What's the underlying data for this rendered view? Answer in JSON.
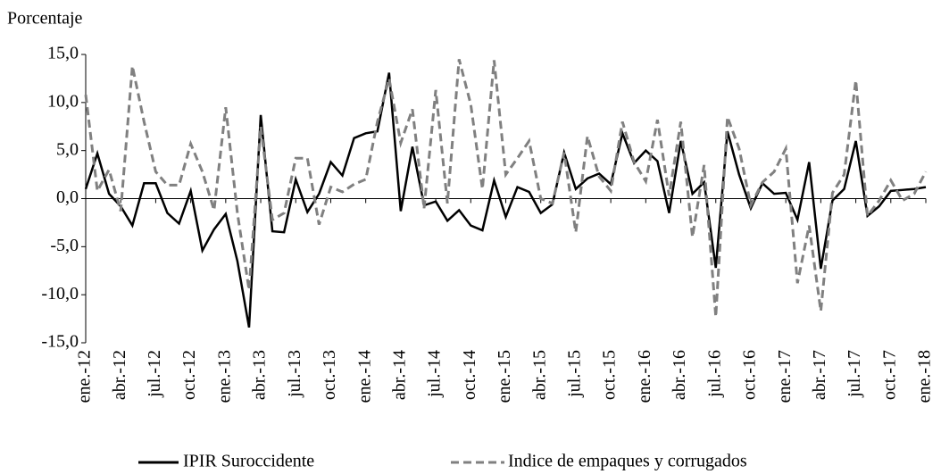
{
  "chart_data": {
    "type": "line",
    "y_label": "Porcentaje",
    "categories": [
      "ene.-12",
      null,
      null,
      "abr.-12",
      null,
      null,
      "jul.-12",
      null,
      null,
      "oct.-12",
      null,
      null,
      "ene.-13",
      null,
      null,
      "abr.-13",
      null,
      null,
      "jul.-13",
      null,
      null,
      "oct.-13",
      null,
      null,
      "ene.-14",
      null,
      null,
      "abr.-14",
      null,
      null,
      "jul.-14",
      null,
      null,
      "oct.-14",
      null,
      null,
      "ene.-15",
      null,
      null,
      "abr.-15",
      null,
      null,
      "jul.-15",
      null,
      null,
      "oct.-15",
      null,
      null,
      "ene.-16",
      null,
      null,
      "abr.-16",
      null,
      null,
      "jul.-16",
      null,
      null,
      "oct.-16",
      null,
      null,
      "ene.-17",
      null,
      null,
      "abr.-17",
      null,
      null,
      "jul.-17",
      null,
      null,
      "oct.-17",
      null,
      null,
      "ene.-18"
    ],
    "series": [
      {
        "name": "IPIR Suroccidente",
        "color": "#000000",
        "dash": false,
        "values": [
          1.0,
          4.7,
          0.5,
          -0.8,
          -2.8,
          1.6,
          1.6,
          -1.5,
          -2.6,
          0.8,
          -5.4,
          -3.2,
          -1.6,
          -6.5,
          -13.4,
          8.7,
          -3.4,
          -3.5,
          2.0,
          -1.4,
          0.5,
          3.8,
          2.4,
          6.3,
          6.8,
          7.0,
          13.1,
          -1.3,
          5.4,
          -0.7,
          -0.3,
          -2.3,
          -1.2,
          -2.8,
          -3.3,
          1.9,
          -1.9,
          1.2,
          0.7,
          -1.5,
          -0.6,
          4.8,
          1.0,
          2.1,
          2.6,
          1.5,
          6.8,
          3.7,
          5.0,
          3.9,
          -1.5,
          6.0,
          0.5,
          1.7,
          -7.2,
          7.0,
          2.5,
          -1.0,
          1.6,
          0.5,
          0.6,
          -2.2,
          3.8,
          -7.3,
          -0.2,
          1.0,
          6.0,
          -1.8,
          -0.8,
          0.8,
          0.9,
          1.0,
          1.2
        ]
      },
      {
        "name": "Indice de empaques y corrugados",
        "color": "#808080",
        "dash": true,
        "values": [
          10.8,
          0.8,
          3.0,
          -1.3,
          13.8,
          8.0,
          2.8,
          1.4,
          1.4,
          5.7,
          2.8,
          -1.2,
          9.5,
          -1.5,
          -9.5,
          7.5,
          -2.2,
          -1.5,
          4.2,
          4.2,
          -2.7,
          1.2,
          0.7,
          1.5,
          2.0,
          8.0,
          12.5,
          5.8,
          9.3,
          -1.0,
          11.3,
          -0.5,
          14.5,
          9.8,
          1.0,
          14.4,
          2.5,
          4.2,
          6.0,
          0.0,
          -0.5,
          4.8,
          -3.5,
          6.5,
          2.3,
          0.8,
          8.0,
          3.8,
          1.8,
          8.2,
          0.3,
          8.0,
          -4.0,
          3.5,
          -12.3,
          8.5,
          5.2,
          -0.7,
          1.7,
          2.8,
          5.2,
          -8.8,
          -2.8,
          -11.7,
          0.6,
          2.5,
          12.3,
          -1.8,
          -0.2,
          1.9,
          -0.2,
          0.5,
          2.8
        ]
      }
    ],
    "ylim": [
      -15,
      15
    ],
    "yticks": [
      {
        "value": -15,
        "label": "-15,0"
      },
      {
        "value": -10,
        "label": "-10,0"
      },
      {
        "value": -5,
        "label": "-5,0"
      },
      {
        "value": 0,
        "label": "0,0"
      },
      {
        "value": 5,
        "label": "5,0"
      },
      {
        "value": 10,
        "label": "10,0"
      },
      {
        "value": 15,
        "label": "15,0"
      }
    ],
    "legend": "bottom"
  }
}
